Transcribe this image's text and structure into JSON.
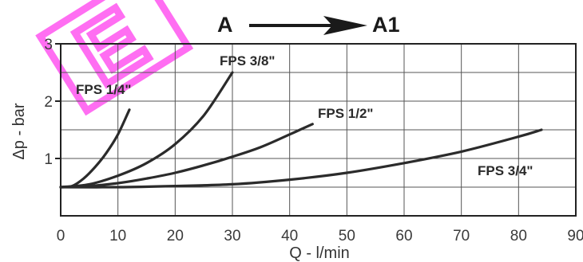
{
  "chart_data": {
    "type": "line",
    "title": "",
    "xlabel": "Q - l/min",
    "ylabel": "Δp - bar",
    "xlim": [
      0,
      90
    ],
    "ylim": [
      0,
      3
    ],
    "xticks": [
      0,
      10,
      20,
      30,
      40,
      50,
      60,
      70,
      80,
      90
    ],
    "xtick_labels": [
      "0",
      "10",
      "20",
      "30",
      "40",
      "50",
      "60",
      "70",
      "80",
      "90"
    ],
    "yticks": [
      1,
      2,
      3
    ],
    "ytick_labels": [
      "1",
      "2",
      "3"
    ],
    "grid": true,
    "series": [
      {
        "name": "FPS 1/4\"",
        "x": [
          0,
          2,
          4,
          6,
          8,
          10,
          12
        ],
        "y": [
          0.5,
          0.52,
          0.65,
          0.85,
          1.1,
          1.42,
          1.85
        ]
      },
      {
        "name": "FPS 3/8\"",
        "x": [
          0,
          5,
          10,
          15,
          20,
          25,
          30
        ],
        "y": [
          0.5,
          0.55,
          0.7,
          0.92,
          1.25,
          1.75,
          2.5
        ]
      },
      {
        "name": "FPS 1/2\"",
        "x": [
          0,
          5,
          10,
          15,
          20,
          25,
          30,
          35,
          40,
          44
        ],
        "y": [
          0.5,
          0.52,
          0.57,
          0.65,
          0.75,
          0.88,
          1.03,
          1.2,
          1.42,
          1.6
        ]
      },
      {
        "name": "FPS 3/4\"",
        "x": [
          0,
          10,
          20,
          30,
          40,
          50,
          60,
          70,
          80,
          84
        ],
        "y": [
          0.5,
          0.5,
          0.52,
          0.55,
          0.63,
          0.75,
          0.92,
          1.12,
          1.38,
          1.5
        ]
      }
    ],
    "annotations": {
      "flow_from": "A",
      "flow_to": "A1"
    }
  },
  "stamp_text": "E"
}
